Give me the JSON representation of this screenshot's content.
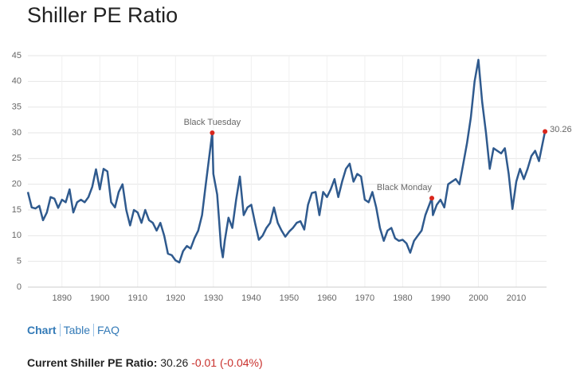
{
  "chart_data": {
    "type": "line",
    "title": "Shiller PE Ratio",
    "color": "#2f5a8e",
    "marker_color": "#d9261c",
    "grid": true,
    "x": [
      1881,
      1882,
      1883,
      1884,
      1885,
      1886,
      1887,
      1888,
      1889,
      1890,
      1891,
      1892,
      1893,
      1894,
      1895,
      1896,
      1897,
      1898,
      1899,
      1900,
      1901,
      1902,
      1903,
      1904,
      1905,
      1906,
      1907,
      1908,
      1909,
      1910,
      1911,
      1912,
      1913,
      1914,
      1915,
      1916,
      1917,
      1918,
      1919,
      1920,
      1921,
      1922,
      1923,
      1924,
      1925,
      1926,
      1927,
      1928,
      1929.7,
      1930,
      1931,
      1931.5,
      1932,
      1932.5,
      1933,
      1934,
      1935,
      1936,
      1937,
      1938,
      1939,
      1940,
      1941,
      1942,
      1943,
      1944,
      1945,
      1946,
      1947,
      1948,
      1949,
      1950,
      1951,
      1952,
      1953,
      1954,
      1955,
      1956,
      1957,
      1958,
      1959,
      1960,
      1961,
      1962,
      1963,
      1964,
      1965,
      1966,
      1967,
      1968,
      1969,
      1970,
      1971,
      1972,
      1973,
      1974,
      1975,
      1976,
      1977,
      1978,
      1979,
      1980,
      1981,
      1982,
      1983,
      1984,
      1985,
      1986,
      1987.7,
      1988,
      1989,
      1990,
      1991,
      1992,
      1993,
      1994,
      1995,
      1996,
      1997,
      1998,
      1999,
      2000,
      2001,
      2002,
      2003,
      2004,
      2005,
      2006,
      2007,
      2008,
      2009,
      2010,
      2011,
      2012,
      2013,
      2014,
      2015,
      2016,
      2017.6
    ],
    "values": [
      18.5,
      15.5,
      15.3,
      15.8,
      13,
      14.5,
      17.5,
      17.2,
      15.4,
      17,
      16.5,
      19,
      14.5,
      16.5,
      17,
      16.5,
      17.5,
      19.5,
      22.9,
      19,
      23,
      22.5,
      16.5,
      15.5,
      18.5,
      20,
      15,
      12,
      15,
      14.5,
      12.5,
      15,
      13,
      12.5,
      11,
      12.5,
      10,
      6.5,
      6.2,
      5.2,
      4.8,
      7,
      8,
      7.5,
      9.5,
      11,
      14,
      20,
      30,
      22,
      18,
      13,
      8,
      5.8,
      9,
      13.5,
      11.5,
      17,
      21.5,
      14,
      15.5,
      16,
      12.5,
      9.2,
      10,
      11.5,
      12.5,
      15.5,
      12.5,
      11,
      9.8,
      10.8,
      11.5,
      12.5,
      12.8,
      11.2,
      16,
      18.3,
      18.5,
      14,
      18.5,
      17.5,
      19,
      21,
      17.5,
      20.5,
      23,
      24,
      20.5,
      22,
      21.5,
      17,
      16.5,
      18.5,
      15.5,
      11.5,
      9,
      11,
      11.5,
      9.5,
      9,
      9.2,
      8.5,
      6.7,
      9,
      10,
      11,
      14,
      17.3,
      14,
      16,
      17,
      15.5,
      20,
      20.5,
      21,
      20,
      24,
      28,
      33,
      40,
      44.2,
      36,
      30,
      23,
      27,
      26.5,
      26,
      27,
      22,
      15.2,
      20.5,
      23,
      21,
      23,
      25.5,
      26.5,
      24.5,
      30.26
    ],
    "xlim": [
      1881,
      2018
    ],
    "xticks": [
      1890,
      1900,
      1910,
      1920,
      1930,
      1940,
      1950,
      1960,
      1970,
      1980,
      1990,
      2000,
      2010
    ],
    "ylim": [
      0,
      45
    ],
    "yticks": [
      0,
      5,
      10,
      15,
      20,
      25,
      30,
      35,
      40,
      45
    ],
    "annotations": [
      {
        "text": "Black Tuesday",
        "x": 1929.7,
        "y": 30
      },
      {
        "text": "Black Monday",
        "x": 1987.7,
        "y": 17.3
      }
    ]
  },
  "nav": [
    "Chart",
    "Table",
    "FAQ"
  ],
  "current": {
    "label": "Current Shiller PE Ratio:",
    "value": "30.26",
    "change": "-0.01 (-0.04%)"
  }
}
